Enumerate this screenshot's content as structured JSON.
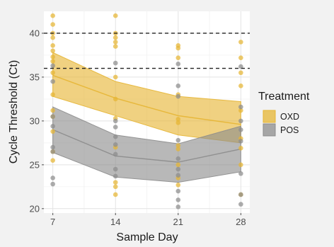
{
  "chart_data": {
    "type": "scatter",
    "title": "",
    "xlabel": "Sample Day",
    "ylabel": "Cycle Threshold (Ct)",
    "x_ticks": [
      7,
      14,
      21,
      28
    ],
    "y_ticks": [
      20,
      25,
      30,
      35,
      40
    ],
    "xlim": [
      6,
      29
    ],
    "ylim": [
      19.5,
      42.5
    ],
    "grid": true,
    "reference_lines_y": [
      40,
      36
    ],
    "legend": {
      "title": "Treatment",
      "placement": "right",
      "entries": [
        "OXD",
        "POS"
      ]
    },
    "series": [
      {
        "name": "OXD",
        "color": "#E6B533",
        "points": [
          {
            "x": 7,
            "y": 42.0
          },
          {
            "x": 7,
            "y": 41.0
          },
          {
            "x": 7,
            "y": 40.0
          },
          {
            "x": 7,
            "y": 39.5
          },
          {
            "x": 7,
            "y": 38.6
          },
          {
            "x": 7,
            "y": 38.0
          },
          {
            "x": 7,
            "y": 37.3
          },
          {
            "x": 7,
            "y": 36.8
          },
          {
            "x": 7,
            "y": 35.5
          },
          {
            "x": 7,
            "y": 33.0
          },
          {
            "x": 7,
            "y": 31.2
          },
          {
            "x": 7,
            "y": 30.5
          },
          {
            "x": 7,
            "y": 28.8
          },
          {
            "x": 7,
            "y": 26.5
          },
          {
            "x": 7,
            "y": 25.5
          },
          {
            "x": 14,
            "y": 42.0
          },
          {
            "x": 14,
            "y": 40.0
          },
          {
            "x": 14,
            "y": 39.5
          },
          {
            "x": 14,
            "y": 39.0
          },
          {
            "x": 14,
            "y": 38.5
          },
          {
            "x": 14,
            "y": 35.0
          },
          {
            "x": 14,
            "y": 32.5
          },
          {
            "x": 14,
            "y": 30.3
          },
          {
            "x": 14,
            "y": 27.0
          },
          {
            "x": 14,
            "y": 23.0
          },
          {
            "x": 14,
            "y": 22.5
          },
          {
            "x": 14,
            "y": 21.6
          },
          {
            "x": 21,
            "y": 38.6
          },
          {
            "x": 21,
            "y": 38.3
          },
          {
            "x": 21,
            "y": 37.2
          },
          {
            "x": 21,
            "y": 33.0
          },
          {
            "x": 21,
            "y": 30.2
          },
          {
            "x": 21,
            "y": 29.8
          },
          {
            "x": 21,
            "y": 27.2
          },
          {
            "x": 21,
            "y": 26.8
          },
          {
            "x": 21,
            "y": 25.0
          },
          {
            "x": 21,
            "y": 23.5
          },
          {
            "x": 21,
            "y": 22.7
          },
          {
            "x": 28,
            "y": 39.0
          },
          {
            "x": 28,
            "y": 37.2
          },
          {
            "x": 28,
            "y": 35.5
          },
          {
            "x": 28,
            "y": 34.0
          },
          {
            "x": 28,
            "y": 31.2
          },
          {
            "x": 28,
            "y": 28.0
          },
          {
            "x": 28,
            "y": 26.9
          },
          {
            "x": 28,
            "y": 25.0
          },
          {
            "x": 28,
            "y": 21.6
          }
        ],
        "fit": {
          "x": [
            7,
            14,
            21,
            28
          ],
          "y": [
            35.2,
            32.6,
            30.6,
            29.6
          ]
        },
        "band_upper": [
          37.8,
          34.5,
          32.8,
          32.2
        ],
        "band_lower": [
          32.8,
          30.6,
          28.4,
          27.5
        ]
      },
      {
        "name": "POS",
        "color": "#8C8C8C",
        "points": [
          {
            "x": 7,
            "y": 36.3
          },
          {
            "x": 7,
            "y": 34.5
          },
          {
            "x": 7,
            "y": 30.5
          },
          {
            "x": 7,
            "y": 29.4
          },
          {
            "x": 7,
            "y": 27.0
          },
          {
            "x": 7,
            "y": 26.5
          },
          {
            "x": 7,
            "y": 23.5
          },
          {
            "x": 7,
            "y": 22.8
          },
          {
            "x": 14,
            "y": 36.6
          },
          {
            "x": 14,
            "y": 30.0
          },
          {
            "x": 14,
            "y": 29.3
          },
          {
            "x": 14,
            "y": 28.2
          },
          {
            "x": 14,
            "y": 27.3
          },
          {
            "x": 14,
            "y": 26.2
          },
          {
            "x": 14,
            "y": 24.5
          },
          {
            "x": 14,
            "y": 23.7
          },
          {
            "x": 21,
            "y": 36.5
          },
          {
            "x": 21,
            "y": 34.0
          },
          {
            "x": 21,
            "y": 32.8
          },
          {
            "x": 21,
            "y": 27.8
          },
          {
            "x": 21,
            "y": 25.7
          },
          {
            "x": 21,
            "y": 24.5
          },
          {
            "x": 21,
            "y": 23.8
          },
          {
            "x": 21,
            "y": 22.0
          },
          {
            "x": 21,
            "y": 21.0
          },
          {
            "x": 21,
            "y": 20.2
          },
          {
            "x": 28,
            "y": 36.2
          },
          {
            "x": 28,
            "y": 31.6
          },
          {
            "x": 28,
            "y": 30.0
          },
          {
            "x": 28,
            "y": 29.0
          },
          {
            "x": 28,
            "y": 27.7
          },
          {
            "x": 28,
            "y": 24.0
          },
          {
            "x": 28,
            "y": 21.6
          },
          {
            "x": 28,
            "y": 20.5
          }
        ],
        "fit": {
          "x": [
            7,
            14,
            21,
            28
          ],
          "y": [
            29.0,
            26.0,
            25.3,
            26.8
          ]
        },
        "band_upper": [
          31.6,
          28.4,
          27.4,
          29.4
        ],
        "band_lower": [
          26.4,
          23.6,
          23.0,
          24.2
        ]
      }
    ]
  }
}
